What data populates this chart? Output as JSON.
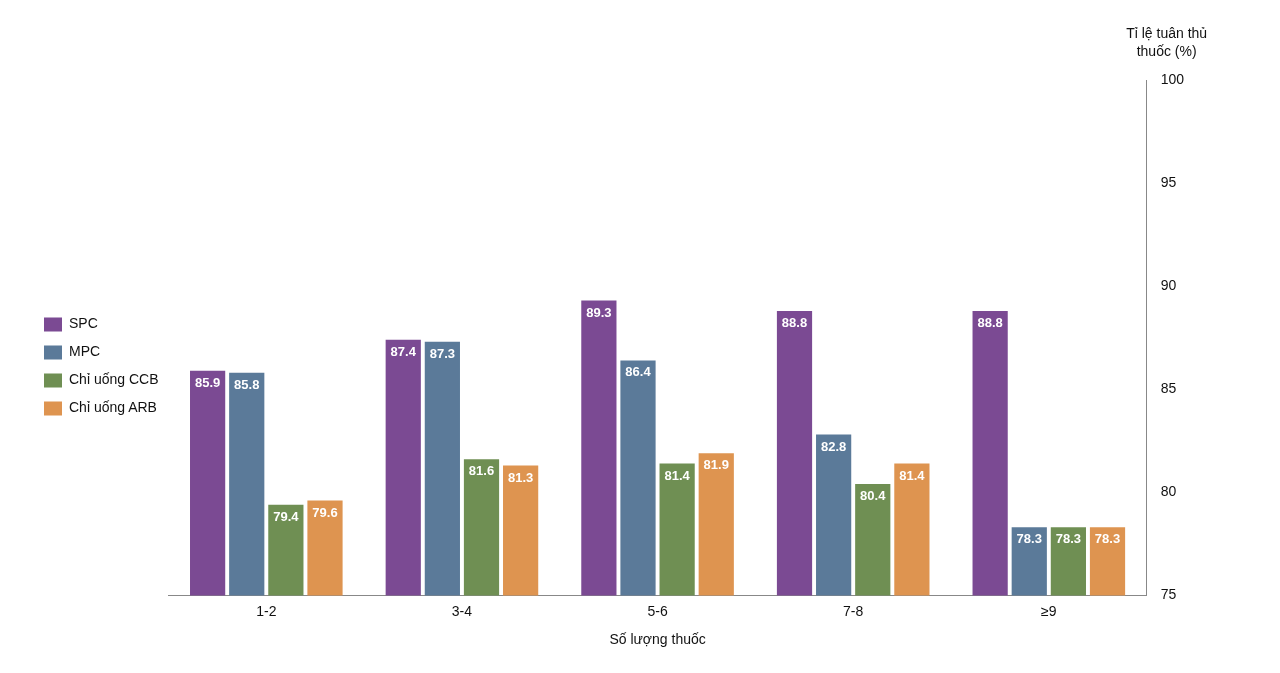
{
  "chart_data": {
    "type": "bar",
    "xlabel": "Số lượng thuốc",
    "ylabel": "Tỉ lệ tuân thủ thuốc (%)",
    "categories": [
      "1-2",
      "3-4",
      "5-6",
      "7-8",
      "≥9"
    ],
    "series": [
      {
        "name": "SPC",
        "color": "#7b4a93",
        "values": [
          85.9,
          87.4,
          89.3,
          88.8,
          88.8
        ]
      },
      {
        "name": "MPC",
        "color": "#5b7a99",
        "values": [
          85.8,
          87.3,
          86.4,
          82.8,
          78.3
        ]
      },
      {
        "name": "Chỉ uống CCB",
        "color": "#6f8f53",
        "values": [
          79.4,
          81.6,
          81.4,
          80.4,
          78.3
        ]
      },
      {
        "name": "Chỉ uống ARB",
        "color": "#de9450",
        "values": [
          79.6,
          81.3,
          81.9,
          81.4,
          78.3
        ]
      }
    ],
    "ylim": [
      75,
      100
    ],
    "yticks": [
      75,
      80,
      85,
      90,
      95,
      100
    ],
    "data_labels": true,
    "legend": "left"
  }
}
